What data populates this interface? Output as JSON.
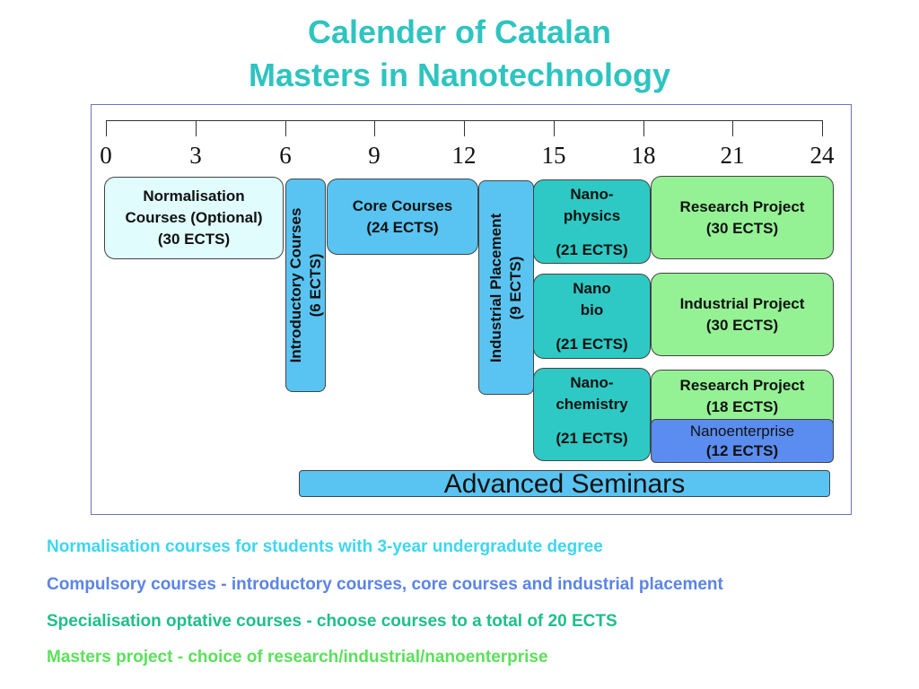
{
  "title": {
    "line1": "Calender of Catalan",
    "line2": "Masters in Nanotechnology"
  },
  "scale": {
    "ticks": [
      "0",
      "3",
      "6",
      "9",
      "12",
      "15",
      "18",
      "21",
      "24"
    ]
  },
  "boxes": {
    "normalisation": [
      "Normalisation",
      "Courses (Optional)",
      "(30 ECTS)"
    ],
    "introductory": [
      "Introductory Courses",
      "(6 ECTS)"
    ],
    "core": [
      "Core Courses",
      "(24 ECTS)"
    ],
    "industrial_placement": [
      "Industrial Placement",
      "(9 ECTS)"
    ],
    "nanophysics": [
      "Nano-",
      "physics",
      "(21 ECTS)"
    ],
    "nanobio": [
      "Nano",
      "bio",
      "(21 ECTS)"
    ],
    "nanochemistry": [
      "Nano-",
      "chemistry",
      "(21 ECTS)"
    ],
    "research_project_30": [
      "Research Project",
      "(30 ECTS)"
    ],
    "industrial_project": [
      "Industrial Project",
      "(30 ECTS)"
    ],
    "research_project_18": [
      "Research Project",
      "(18 ECTS)"
    ],
    "nanoenterprise": [
      "Nanoenterprise",
      "(12 ECTS)"
    ],
    "advanced_seminars": "Advanced Seminars"
  },
  "notes": [
    "Normalisation courses for students with 3-year undergradute degree",
    "Compulsory courses - introductory courses, core courses and industrial placement",
    "Specialisation optative courses - choose courses to a total of 20 ECTS",
    "Masters project - choice of research/industrial/nanoenterprise"
  ],
  "colors": {
    "title": "#2ec4c0",
    "normalisation": "#e0fcfc",
    "compulsory": "#59c4f2",
    "specialisation": "#2ec9c4",
    "project": "#94f294",
    "nanoenterprise": "#5b8df0"
  }
}
